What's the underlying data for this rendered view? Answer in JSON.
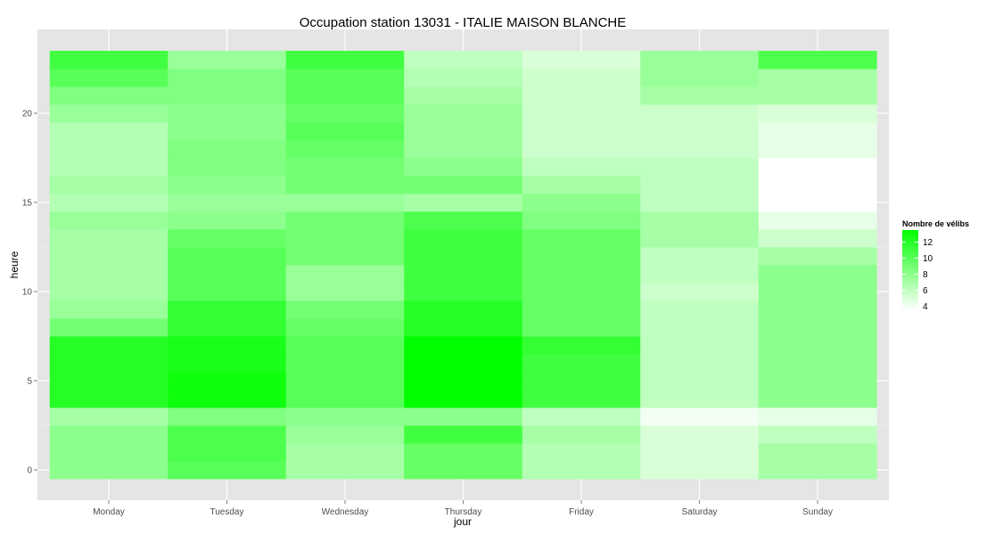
{
  "chart_data": {
    "type": "heatmap",
    "title": "Occupation station 13031 - ITALIE MAISON BLANCHE",
    "xlabel": "jour",
    "ylabel": "heure",
    "x_categories": [
      "Monday",
      "Tuesday",
      "Wednesday",
      "Thursday",
      "Friday",
      "Saturday",
      "Sunday"
    ],
    "y_values": [
      0,
      1,
      2,
      3,
      4,
      5,
      6,
      7,
      8,
      9,
      10,
      11,
      12,
      13,
      14,
      15,
      16,
      17,
      18,
      19,
      20,
      21,
      22,
      23
    ],
    "y_ticks": [
      0,
      5,
      10,
      15,
      20
    ],
    "ylim": [
      -0.5,
      23.5
    ],
    "legend": {
      "title": "Nombre de vélibs",
      "ticks": [
        4,
        6,
        8,
        10,
        12
      ],
      "min": 3.5,
      "max": 13.5,
      "low_color": "#ffffff",
      "high_color": "#00ff00",
      "position": "right"
    },
    "grid": true,
    "panel_background": "#e5e5e5",
    "values_by_day": {
      "Monday": [
        8.0,
        8.0,
        8.0,
        7.0,
        12.0,
        12.0,
        12.0,
        12.0,
        9.0,
        7.5,
        7.0,
        7.0,
        7.0,
        7.0,
        7.5,
        6.5,
        7.0,
        6.5,
        6.5,
        6.5,
        7.5,
        8.5,
        10.0,
        11.0
      ],
      "Tuesday": [
        10.0,
        10.5,
        10.5,
        8.5,
        13.0,
        13.0,
        12.5,
        12.5,
        11.5,
        11.5,
        10.0,
        10.0,
        10.0,
        9.5,
        8.0,
        7.5,
        8.0,
        8.5,
        8.5,
        8.0,
        8.0,
        8.5,
        8.5,
        7.5
      ],
      "Wednesday": [
        7.0,
        7.0,
        7.5,
        8.0,
        10.0,
        10.0,
        10.0,
        10.0,
        9.5,
        9.0,
        7.5,
        7.5,
        9.0,
        9.0,
        9.0,
        7.5,
        9.0,
        9.0,
        9.5,
        10.0,
        9.5,
        10.0,
        10.0,
        11.0
      ],
      "Thursday": [
        9.5,
        9.5,
        11.0,
        8.0,
        13.5,
        13.5,
        13.5,
        13.5,
        12.0,
        12.0,
        11.0,
        11.0,
        11.0,
        11.0,
        10.5,
        7.0,
        9.0,
        8.0,
        7.5,
        7.5,
        7.5,
        7.0,
        6.5,
        6.0
      ],
      "Friday": [
        6.5,
        6.5,
        7.0,
        6.0,
        11.0,
        11.0,
        11.0,
        11.5,
        9.5,
        9.5,
        9.5,
        9.5,
        9.5,
        9.5,
        8.5,
        8.0,
        7.0,
        6.0,
        5.5,
        5.5,
        5.5,
        5.5,
        5.5,
        5.0
      ],
      "Saturday": [
        5.0,
        5.0,
        5.0,
        4.0,
        6.0,
        6.0,
        6.0,
        6.0,
        6.0,
        6.0,
        5.5,
        6.0,
        6.0,
        7.0,
        7.0,
        6.0,
        6.0,
        6.0,
        5.5,
        5.5,
        5.5,
        7.0,
        7.5,
        7.5
      ],
      "Sunday": [
        7.0,
        7.0,
        6.0,
        4.5,
        8.0,
        8.0,
        8.0,
        8.0,
        8.0,
        8.0,
        8.0,
        8.0,
        7.0,
        5.5,
        4.5,
        3.5,
        3.5,
        3.5,
        4.5,
        4.5,
        5.0,
        7.0,
        7.0,
        10.5
      ]
    }
  }
}
